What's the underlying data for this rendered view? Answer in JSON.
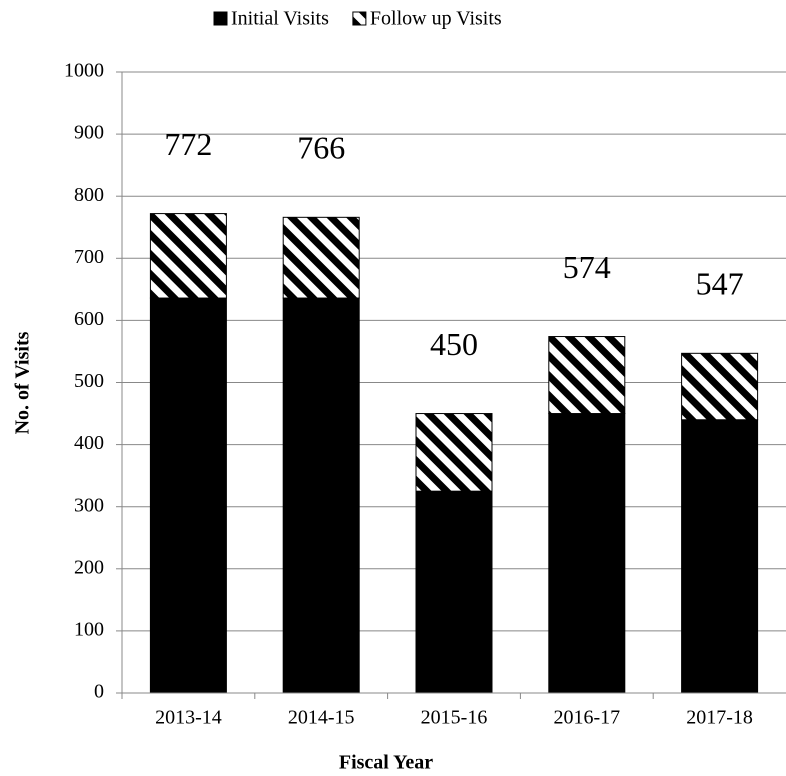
{
  "chart_data": {
    "type": "stacked_bar",
    "categories": [
      "2013-14",
      "2014-15",
      "2015-16",
      "2016-17",
      "2017-18"
    ],
    "series": [
      {
        "name": "Initial Visits",
        "color": "#000000",
        "values": [
          636,
          636,
          325,
          450,
          440
        ]
      },
      {
        "name": "Follow up Visits",
        "color": "#000000",
        "pattern": "diagonal",
        "values": [
          136,
          130,
          125,
          124,
          107
        ]
      }
    ],
    "totals": [
      772,
      766,
      450,
      574,
      547
    ],
    "xlabel": "Fiscal Year",
    "ylabel": "No. of Visits",
    "ylim": [
      0,
      1000
    ],
    "yticks": [
      0,
      100,
      200,
      300,
      400,
      500,
      600,
      700,
      800,
      900,
      1000
    ],
    "grid": true,
    "legend": "top"
  }
}
